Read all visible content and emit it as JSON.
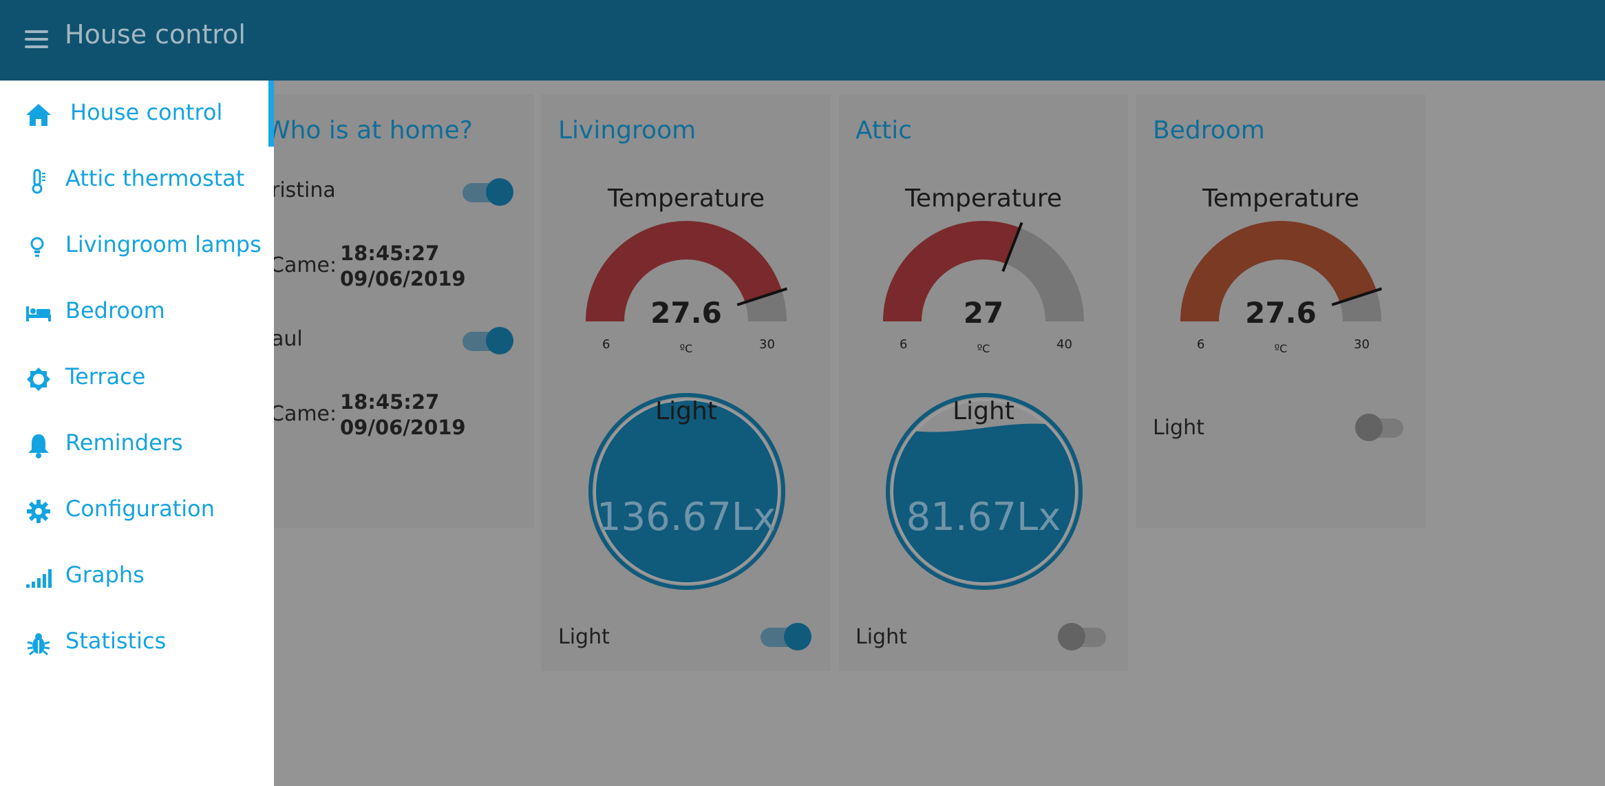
{
  "header": {
    "title": "House control",
    "menu_icon": "hamburger-menu-icon"
  },
  "sidebar": {
    "items": [
      {
        "label": "House control",
        "icon": "home-icon",
        "active": true
      },
      {
        "label": "Attic thermostat",
        "icon": "thermometer-icon"
      },
      {
        "label": "Livingroom lamps",
        "icon": "lightbulb-icon"
      },
      {
        "label": "Bedroom",
        "icon": "bed-icon"
      },
      {
        "label": "Terrace",
        "icon": "sun-icon"
      },
      {
        "label": "Reminders",
        "icon": "bell-icon"
      },
      {
        "label": "Configuration",
        "icon": "gear-icon"
      },
      {
        "label": "Graphs",
        "icon": "signal-bars-icon"
      },
      {
        "label": "Statistics",
        "icon": "bug-icon"
      }
    ]
  },
  "home": {
    "title": "Who is at home?",
    "people": [
      {
        "name": "ristina",
        "present": true,
        "came_label": "Came:",
        "came_time": "18:45:27",
        "came_date": "09/06/2019"
      },
      {
        "name": "aul",
        "present": true,
        "came_label": "Came:",
        "came_time": "18:45:27",
        "came_date": "09/06/2019"
      }
    ]
  },
  "rooms": [
    {
      "title": "Livingroom",
      "temperature": {
        "title": "Temperature",
        "value": 27.6,
        "display": "27.6",
        "min": 6,
        "max": 30,
        "min_label": "6",
        "max_label": "30",
        "unit": "ºC",
        "color": "#7a2a2c"
      },
      "light_gauge": {
        "title": "Light",
        "value": 136.67,
        "display": "136.67Lx",
        "fill": 1.0
      },
      "light_switch": {
        "label": "Light",
        "on": true
      }
    },
    {
      "title": "Attic",
      "temperature": {
        "title": "Temperature",
        "value": 27,
        "display": "27",
        "min": 6,
        "max": 40,
        "min_label": "6",
        "max_label": "40",
        "unit": "ºC",
        "color": "#7a2a2c"
      },
      "light_gauge": {
        "title": "Light",
        "value": 81.67,
        "display": "81.67Lx",
        "fill": 0.85
      },
      "light_switch": {
        "label": "Light",
        "on": false
      }
    },
    {
      "title": "Bedroom",
      "temperature": {
        "title": "Temperature",
        "value": 27.6,
        "display": "27.6",
        "min": 6,
        "max": 30,
        "min_label": "6",
        "max_label": "30",
        "unit": "ºC",
        "color": "#7a3a24"
      },
      "light_switch": {
        "label": "Light",
        "on": false
      }
    }
  ],
  "colors": {
    "header": "#0f5270",
    "accent": "#14a3e1",
    "switch_on": "#105a7c",
    "gauge_track": "#767676",
    "light_fill": "#105a7c"
  }
}
